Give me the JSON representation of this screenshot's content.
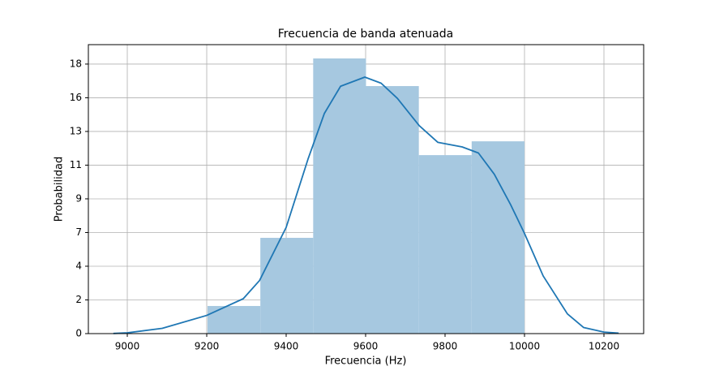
{
  "chart_data": {
    "type": "histogram",
    "title": "Frecuencia de banda atenuada",
    "x_label": "Frecuencia (Hz)",
    "y_label": "Probabilidad",
    "bins": [
      9202,
      9335,
      9468,
      9601,
      9734,
      9867,
      10000
    ],
    "values": [
      1.82,
      6.31,
      18.13,
      16.31,
      11.76,
      12.67
    ],
    "color": "#a6c8e0",
    "kde": {
      "color": "#1f77b4",
      "x": [
        8965,
        9000,
        9088,
        9200,
        9292,
        9333,
        9400,
        9455,
        9496,
        9537,
        9598,
        9639,
        9680,
        9735,
        9782,
        9843,
        9884,
        9924,
        9965,
        10000,
        10047,
        10108,
        10149,
        10200,
        10237
      ],
      "values": [
        0.01,
        0.05,
        0.35,
        1.2,
        2.3,
        3.5,
        7.0,
        11.5,
        14.5,
        16.3,
        16.9,
        16.5,
        15.5,
        13.7,
        12.6,
        12.3,
        11.9,
        10.5,
        8.5,
        6.6,
        3.8,
        1.3,
        0.4,
        0.1,
        0.03
      ]
    },
    "xlim": [
      8902,
      10300
    ],
    "ylim": [
      0,
      19.04
    ],
    "xticks": [
      9000,
      9200,
      9400,
      9600,
      9800,
      10000,
      10200
    ],
    "yticks": [
      0,
      {
        "value": 2.22,
        "label": "2"
      },
      {
        "value": 4.44,
        "label": "4"
      },
      {
        "value": 6.66,
        "label": "7"
      },
      {
        "value": 8.88,
        "label": "9"
      },
      {
        "value": 11.1,
        "label": "11"
      },
      {
        "value": 13.32,
        "label": "13"
      },
      {
        "value": 15.54,
        "label": "16"
      },
      {
        "value": 17.76,
        "label": "18"
      }
    ],
    "grid": true
  }
}
